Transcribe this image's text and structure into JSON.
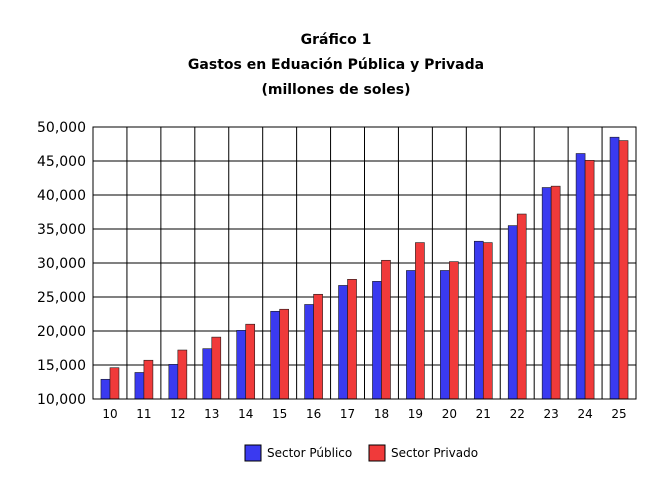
{
  "chart_data": {
    "type": "bar",
    "title": "Gráfico 1",
    "subtitle": "Gastos en Eduación Pública y Privada",
    "units_note": "(millones de soles)",
    "xlabel": "",
    "ylabel": "",
    "categories": [
      "10",
      "11",
      "12",
      "13",
      "14",
      "15",
      "16",
      "17",
      "18",
      "19",
      "20",
      "21",
      "22",
      "23",
      "24",
      "25"
    ],
    "series": [
      {
        "name": "Sector Público",
        "color": "#3a3af0",
        "values": [
          12900,
          13900,
          15100,
          17400,
          20100,
          22900,
          23900,
          26700,
          27300,
          28900,
          28900,
          33200,
          35500,
          41100,
          46100,
          48500
        ]
      },
      {
        "name": "Sector Privado",
        "color": "#f03a3a",
        "values": [
          14600,
          15700,
          17200,
          19100,
          21000,
          23200,
          25400,
          27600,
          30400,
          33000,
          30200,
          33000,
          37200,
          41300,
          45100,
          48000
        ]
      }
    ],
    "ylim": [
      10000,
      50000
    ],
    "yticks": [
      "10,000",
      "15,000",
      "20,000",
      "25,000",
      "30,000",
      "35,000",
      "40,000",
      "45,000",
      "50,000"
    ],
    "ytick_values": [
      10000,
      15000,
      20000,
      25000,
      30000,
      35000,
      40000,
      45000,
      50000
    ],
    "grid": true,
    "legend": "bottom"
  }
}
